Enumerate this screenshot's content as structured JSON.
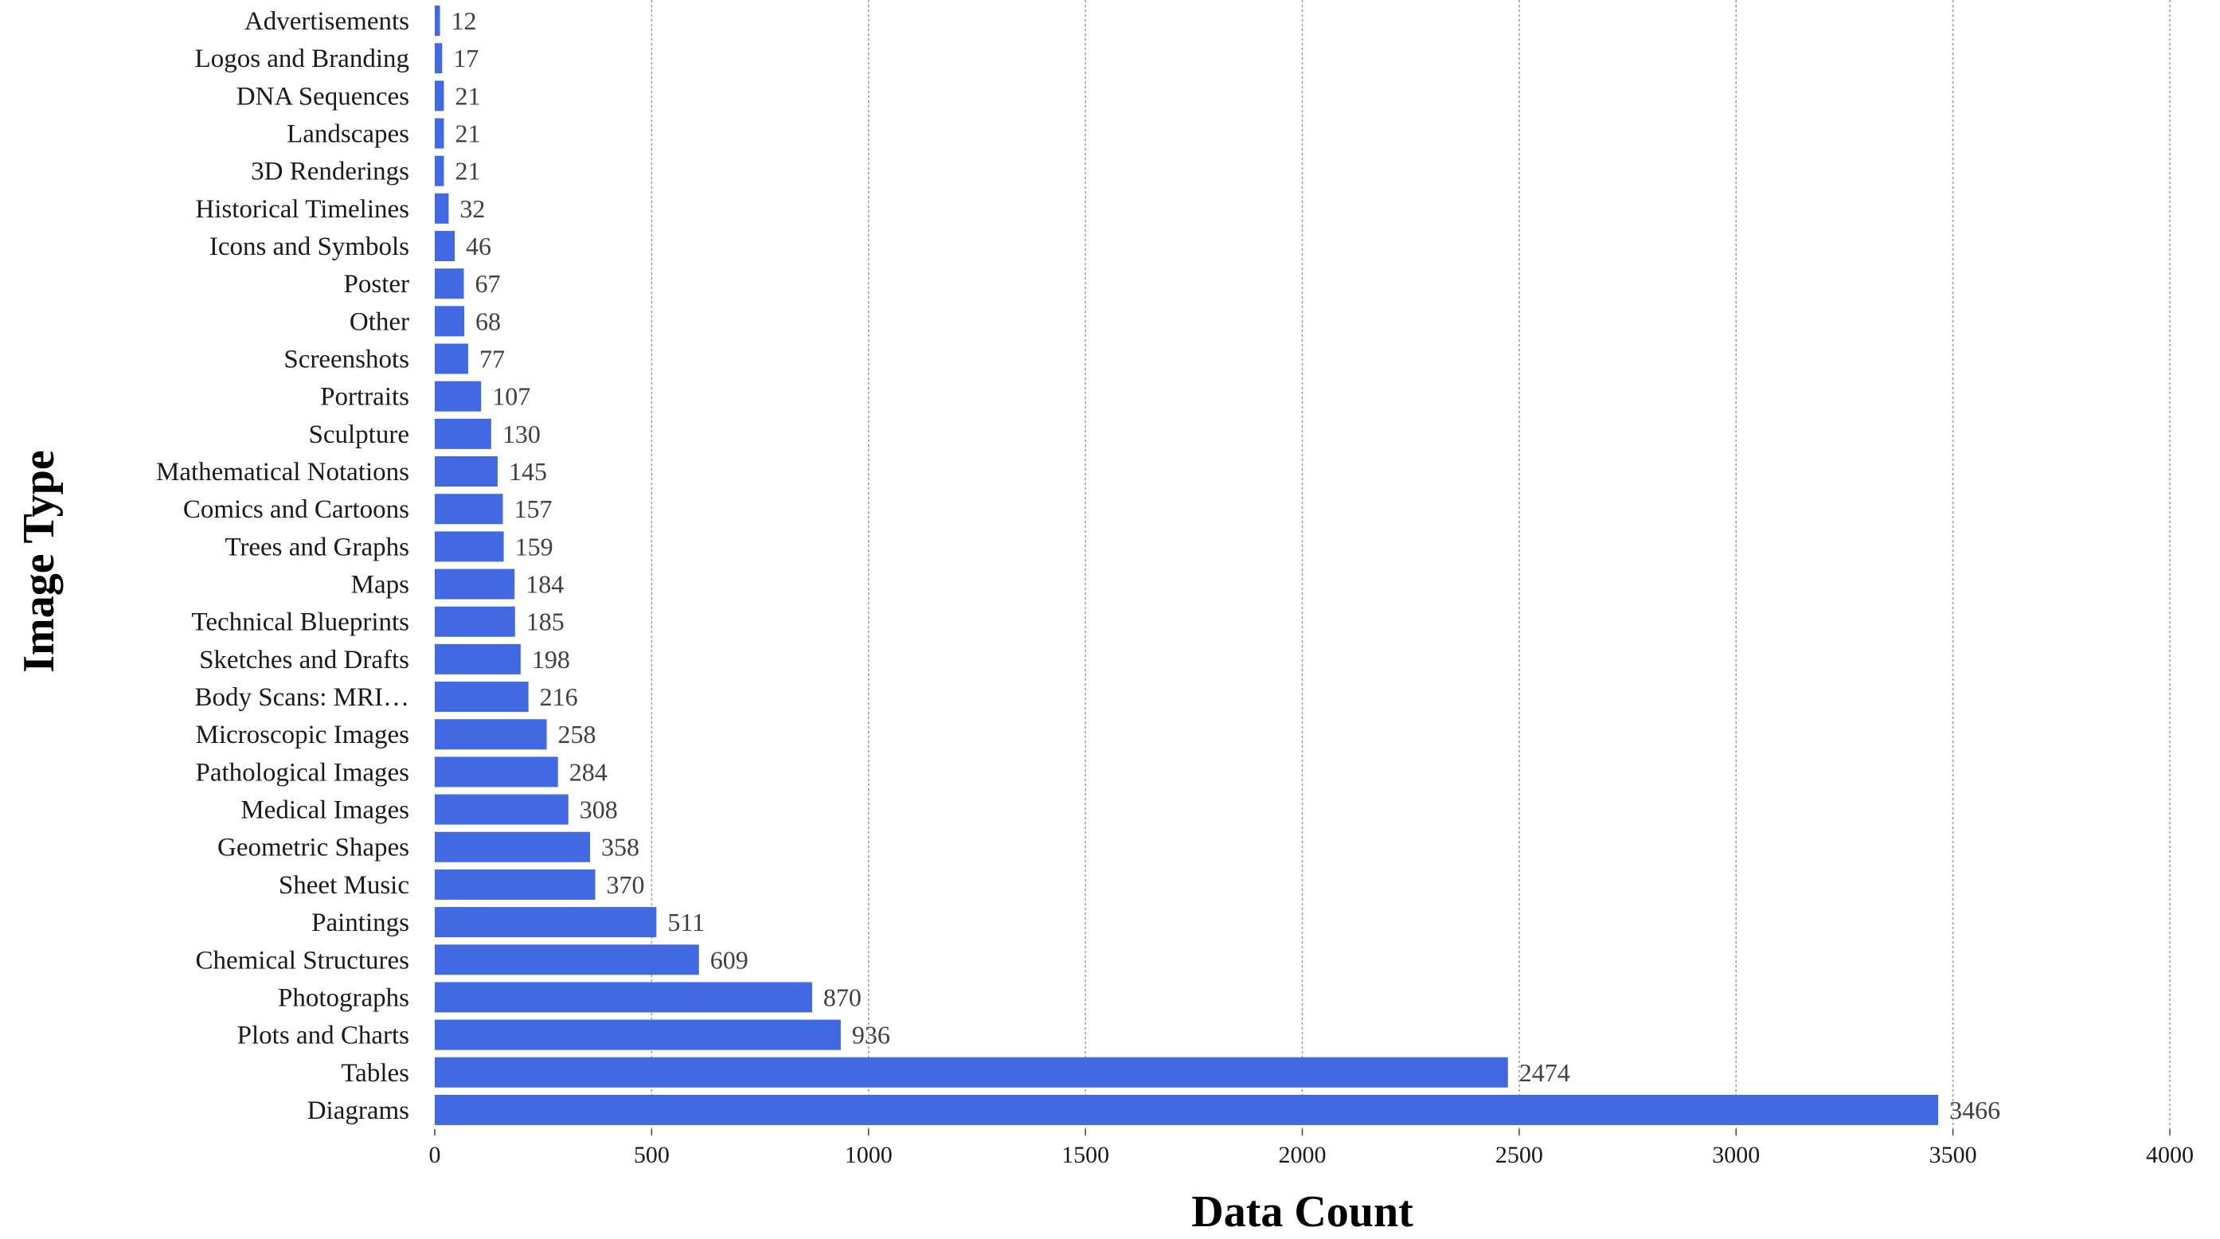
{
  "chart_data": {
    "type": "bar",
    "orientation": "horizontal",
    "title": "",
    "xlabel": "Data Count",
    "ylabel": "Image Type",
    "xlim": [
      0,
      4000
    ],
    "xticks": [
      0,
      500,
      1000,
      1500,
      2000,
      2500,
      3000,
      3500,
      4000
    ],
    "grid": "vertical dashed",
    "bar_color": "#4169E1",
    "categories": [
      "Advertisements",
      "Logos and Branding",
      "DNA Sequences",
      "Landscapes",
      "3D Renderings",
      "Historical Timelines",
      "Icons and Symbols",
      "Poster",
      "Other",
      "Screenshots",
      "Portraits",
      "Sculpture",
      "Mathematical Notations",
      "Comics and Cartoons",
      "Trees and Graphs",
      "Maps",
      "Technical Blueprints",
      "Sketches and Drafts",
      "Body Scans: MRI…",
      "Microscopic Images",
      "Pathological Images",
      "Medical Images",
      "Geometric Shapes",
      "Sheet Music",
      "Paintings",
      "Chemical Structures",
      "Photographs",
      "Plots and Charts",
      "Tables",
      "Diagrams"
    ],
    "values": [
      12,
      17,
      21,
      21,
      21,
      32,
      46,
      67,
      68,
      77,
      107,
      130,
      145,
      157,
      159,
      184,
      185,
      198,
      216,
      258,
      284,
      308,
      358,
      370,
      511,
      609,
      870,
      936,
      2474,
      3466
    ]
  }
}
